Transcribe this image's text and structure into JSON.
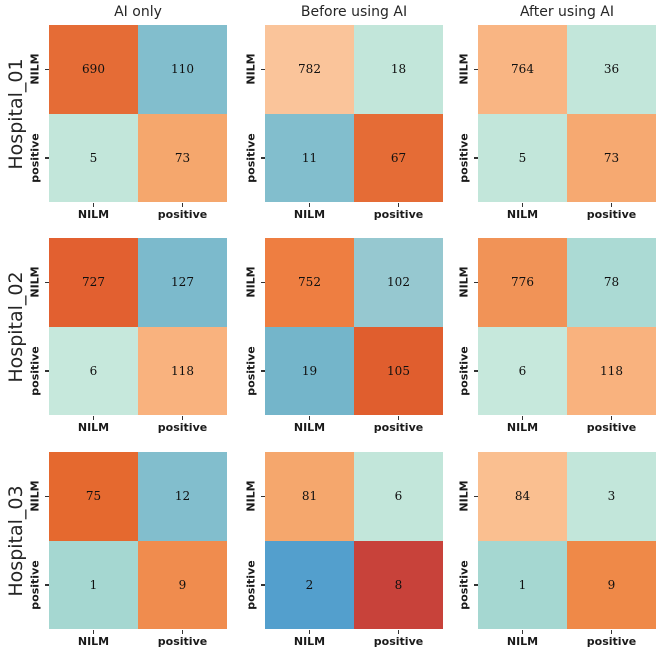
{
  "figure": {
    "background": "#ffffff",
    "text_color": "#262626",
    "tick_color": "#1a1a1a"
  },
  "chart_data": {
    "type": "heatmap",
    "layout": "3x3 grid of 2x2 confusion matrices; rows = hospitals, columns = conditions",
    "col_titles": [
      "AI only",
      "Before using AI",
      "After using AI"
    ],
    "row_labels": [
      "Hospital_01",
      "Hospital_02",
      "Hospital_03"
    ],
    "x_tick_labels": [
      "NILM",
      "positive"
    ],
    "y_tick_labels": [
      "NILM",
      "positive"
    ],
    "matrices": [
      {
        "hospital": "Hospital_01",
        "condition": "AI only",
        "values": [
          [
            690,
            110
          ],
          [
            5,
            73
          ]
        ],
        "cell_colors": [
          [
            "#e56c36",
            "#82becd"
          ],
          [
            "#c2e6da",
            "#f5a76d"
          ]
        ]
      },
      {
        "hospital": "Hospital_01",
        "condition": "Before using AI",
        "values": [
          [
            782,
            18
          ],
          [
            11,
            67
          ]
        ],
        "cell_colors": [
          [
            "#fac49a",
            "#c2e6da"
          ],
          [
            "#82becd",
            "#e56c36"
          ]
        ]
      },
      {
        "hospital": "Hospital_01",
        "condition": "After using AI",
        "values": [
          [
            764,
            36
          ],
          [
            5,
            73
          ]
        ],
        "cell_colors": [
          [
            "#f9b583",
            "#c2e6da"
          ],
          [
            "#c2e6da",
            "#f6a971"
          ]
        ]
      },
      {
        "hospital": "Hospital_02",
        "condition": "AI only",
        "values": [
          [
            727,
            127
          ],
          [
            6,
            118
          ]
        ],
        "cell_colors": [
          [
            "#e26030",
            "#7cbacc"
          ],
          [
            "#c6e8dc",
            "#f9b27e"
          ]
        ]
      },
      {
        "hospital": "Hospital_02",
        "condition": "Before using AI",
        "values": [
          [
            752,
            102
          ],
          [
            19,
            105
          ]
        ],
        "cell_colors": [
          [
            "#ee7e41",
            "#96c8d0"
          ],
          [
            "#74b5ca",
            "#e05e2e"
          ]
        ]
      },
      {
        "hospital": "Hospital_02",
        "condition": "After using AI",
        "values": [
          [
            776,
            78
          ],
          [
            6,
            118
          ]
        ],
        "cell_colors": [
          [
            "#f19357",
            "#abdad4"
          ],
          [
            "#c6e8dc",
            "#f9b27e"
          ]
        ]
      },
      {
        "hospital": "Hospital_03",
        "condition": "AI only",
        "values": [
          [
            75,
            12
          ],
          [
            1,
            9
          ]
        ],
        "cell_colors": [
          [
            "#e5692f",
            "#82becd"
          ],
          [
            "#a5d7d1",
            "#f08c4e"
          ]
        ]
      },
      {
        "hospital": "Hospital_03",
        "condition": "Before using AI",
        "values": [
          [
            81,
            6
          ],
          [
            2,
            8
          ]
        ],
        "cell_colors": [
          [
            "#f5a76d",
            "#c2e6da"
          ],
          [
            "#539fcd",
            "#c8423a"
          ]
        ]
      },
      {
        "hospital": "Hospital_03",
        "condition": "After using AI",
        "values": [
          [
            84,
            3
          ],
          [
            1,
            9
          ]
        ],
        "cell_colors": [
          [
            "#fabf90",
            "#c2e6da"
          ],
          [
            "#a5d7d1",
            "#ef8948"
          ]
        ]
      }
    ]
  }
}
